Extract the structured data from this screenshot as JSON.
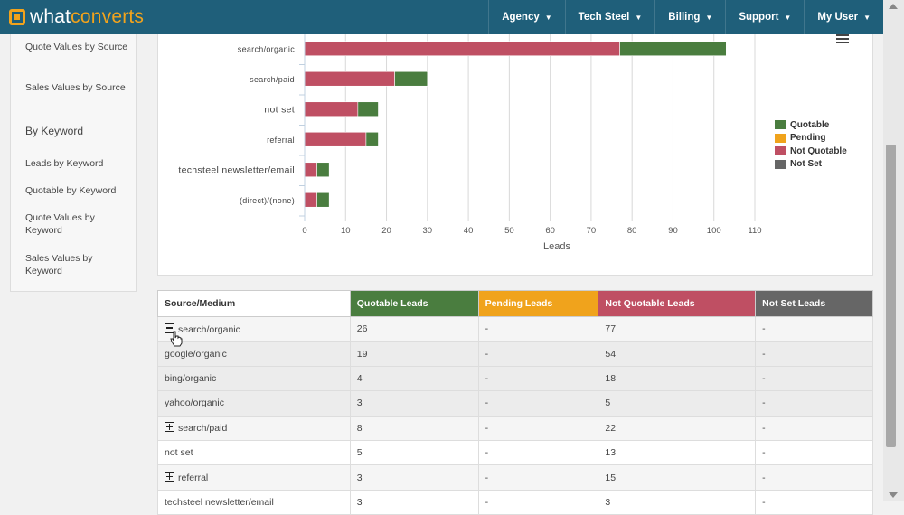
{
  "app": {
    "logo_a": "what",
    "logo_b": "converts"
  },
  "nav": [
    {
      "label": "Agency"
    },
    {
      "label": "Tech Steel"
    },
    {
      "label": "Billing"
    },
    {
      "label": "Support"
    },
    {
      "label": "My User"
    }
  ],
  "sidebar": {
    "items": [
      "Quote Values by Source",
      "Sales Values by Source",
      "Leads by Keyword",
      "Quotable by Keyword",
      "Quote Values by Keyword",
      "Sales Values by Keyword"
    ],
    "heading": "By Keyword"
  },
  "chart_data": {
    "type": "bar",
    "orientation": "horizontal",
    "stacked": true,
    "categories": [
      "search/organic",
      "search/paid",
      "not set",
      "referral",
      "techsteel newsletter/email",
      "(direct)/(none)"
    ],
    "series": [
      {
        "name": "Quotable",
        "color": "#4a7d3f",
        "values": [
          26,
          8,
          5,
          3,
          3,
          3
        ]
      },
      {
        "name": "Pending",
        "color": "#f0a31c",
        "values": [
          0,
          0,
          0,
          0,
          0,
          0
        ]
      },
      {
        "name": "Not Quotable",
        "color": "#bf4f63",
        "values": [
          77,
          22,
          13,
          15,
          3,
          3
        ]
      },
      {
        "name": "Not Set",
        "color": "#666666",
        "values": [
          0,
          0,
          0,
          0,
          0,
          0
        ]
      }
    ],
    "xlabel": "Leads",
    "xlim": [
      0,
      110
    ],
    "xticks": [
      0,
      10,
      20,
      30,
      40,
      50,
      60,
      70,
      80,
      90,
      100,
      110
    ],
    "grid": true,
    "legend_position": "right"
  },
  "table": {
    "headers": [
      "Source/Medium",
      "Quotable Leads",
      "Pending Leads",
      "Not Quotable Leads",
      "Not Set Leads"
    ],
    "rows": [
      {
        "source": "search/organic",
        "toggle": "minus",
        "q": "26",
        "p": "-",
        "nq": "77",
        "ns": "-"
      },
      {
        "source": "google/organic",
        "toggle": "",
        "q": "19",
        "p": "-",
        "nq": "54",
        "ns": "-"
      },
      {
        "source": "bing/organic",
        "toggle": "",
        "q": "4",
        "p": "-",
        "nq": "18",
        "ns": "-"
      },
      {
        "source": "yahoo/organic",
        "toggle": "",
        "q": "3",
        "p": "-",
        "nq": "5",
        "ns": "-"
      },
      {
        "source": "search/paid",
        "toggle": "plus",
        "q": "8",
        "p": "-",
        "nq": "22",
        "ns": "-"
      },
      {
        "source": "not set",
        "toggle": "",
        "q": "5",
        "p": "-",
        "nq": "13",
        "ns": "-"
      },
      {
        "source": "referral",
        "toggle": "plus",
        "q": "3",
        "p": "-",
        "nq": "15",
        "ns": "-"
      },
      {
        "source": "techsteel newsletter/email",
        "toggle": "",
        "q": "3",
        "p": "-",
        "nq": "3",
        "ns": "-"
      }
    ]
  }
}
